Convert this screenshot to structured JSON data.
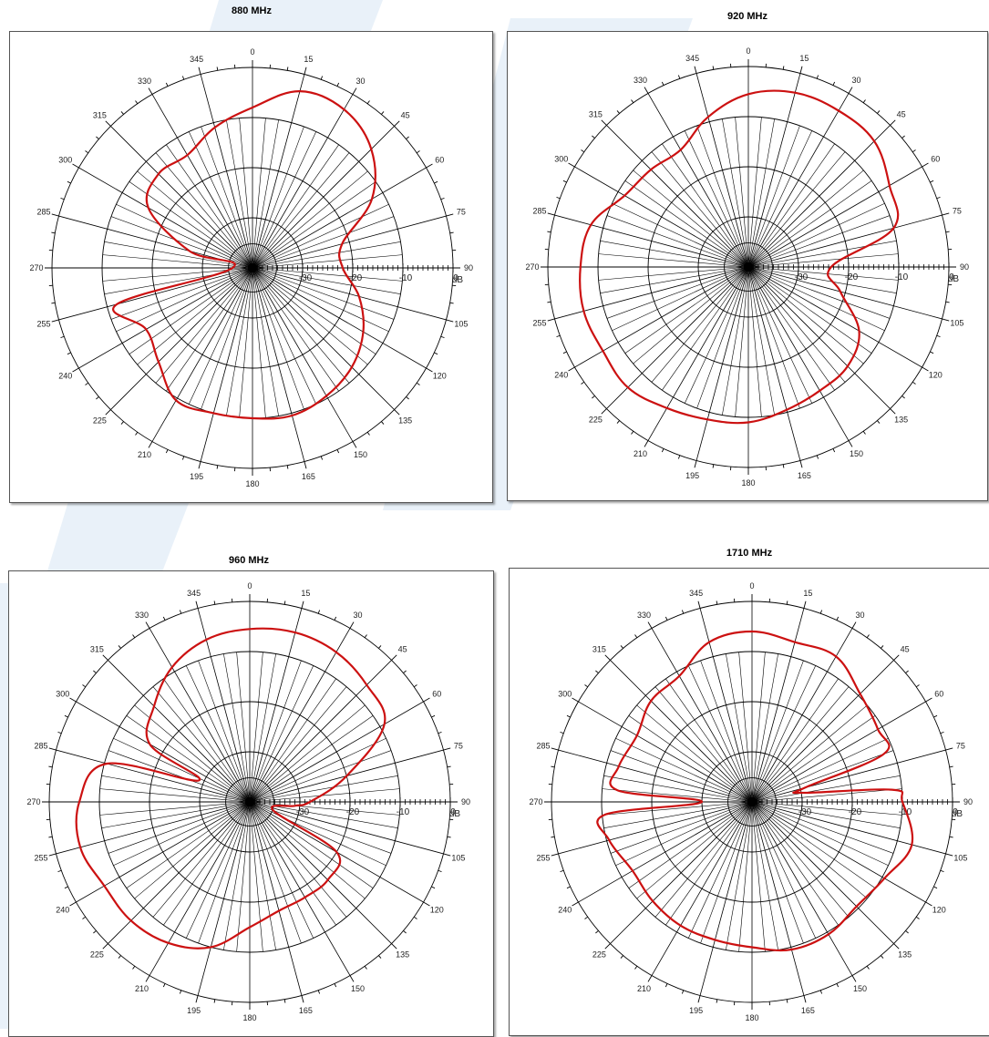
{
  "colors": {
    "pattern": "#cc1111",
    "grid": "#000000",
    "watermark": "#e3eef8"
  },
  "axis": {
    "angle_labels": [
      "0",
      "15",
      "30",
      "45",
      "60",
      "75",
      "90",
      "105",
      "120",
      "135",
      "150",
      "165",
      "180",
      "195",
      "210",
      "225",
      "240",
      "255",
      "270",
      "285",
      "300",
      "315",
      "330",
      "345"
    ],
    "db_labels": [
      "-30",
      "-20",
      "-10",
      "0"
    ],
    "db_unit": "dB"
  },
  "chart_data": [
    {
      "type": "polar-line",
      "title": "880 MHz",
      "r_range_db": [
        -40,
        0
      ],
      "rings_db": [
        -30,
        -20,
        -10,
        0
      ],
      "angle_step_deg": 15,
      "series": [
        {
          "angles_deg": [
            0,
            15,
            30,
            45,
            60,
            75,
            90,
            105,
            120,
            135,
            150,
            165,
            180,
            195,
            210,
            225,
            240,
            255,
            270,
            285,
            300,
            315,
            330,
            345
          ],
          "values_db": [
            -8,
            -3.5,
            -3.5,
            -6.5,
            -12.5,
            -21.5,
            -22,
            -18,
            -14.5,
            -12,
            -10.5,
            -9.5,
            -10,
            -10,
            -9.5,
            -13.5,
            -15.5,
            -12,
            -36,
            -27,
            -16,
            -13.5,
            -14,
            -11
          ]
        }
      ]
    },
    {
      "type": "polar-line",
      "title": "920 MHz",
      "r_range_db": [
        -40,
        0
      ],
      "rings_db": [
        -30,
        -20,
        -10,
        0
      ],
      "angle_step_deg": 15,
      "series": [
        {
          "angles_deg": [
            0,
            15,
            30,
            45,
            60,
            75,
            90,
            105,
            120,
            135,
            150,
            165,
            180,
            195,
            210,
            225,
            240,
            255,
            270,
            285,
            300,
            315,
            330,
            345
          ],
          "values_db": [
            -5.5,
            -4,
            -4,
            -4.5,
            -7.5,
            -10,
            -23.5,
            -21,
            -14.5,
            -12,
            -11.5,
            -10.5,
            -9,
            -8.5,
            -7.5,
            -6,
            -6.5,
            -6,
            -6.5,
            -7.5,
            -11.5,
            -12.5,
            -13,
            -9
          ]
        }
      ]
    },
    {
      "type": "polar-line",
      "title": "960 MHz",
      "r_range_db": [
        -40,
        0
      ],
      "rings_db": [
        -30,
        -20,
        -10,
        0
      ],
      "angle_step_deg": 15,
      "series": [
        {
          "angles_deg": [
            0,
            15,
            30,
            45,
            60,
            75,
            90,
            95,
            110,
            120,
            135,
            150,
            165,
            180,
            195,
            210,
            225,
            240,
            255,
            270,
            285,
            293,
            300,
            315,
            330,
            345
          ],
          "values_db": [
            -5.5,
            -5,
            -5.5,
            -7,
            -9,
            -20,
            -28,
            -31,
            -35,
            -20,
            -18,
            -18,
            -17.5,
            -15,
            -10,
            -7.5,
            -6.5,
            -6.5,
            -5,
            -6,
            -10.5,
            -29,
            -17,
            -13,
            -9,
            -6.5
          ]
        }
      ]
    },
    {
      "type": "polar-line",
      "title": "1710 MHz",
      "r_range_db": [
        -40,
        0
      ],
      "rings_db": [
        -30,
        -20,
        -10,
        0
      ],
      "angle_step_deg": 15,
      "series": [
        {
          "angles_deg": [
            0,
            15,
            30,
            45,
            60,
            70,
            75,
            80,
            85,
            90,
            105,
            120,
            135,
            150,
            165,
            180,
            195,
            210,
            225,
            240,
            255,
            265,
            270,
            275,
            285,
            300,
            315,
            330,
            345
          ],
          "values_db": [
            -6,
            -7,
            -6.5,
            -9.5,
            -11,
            -12,
            -29,
            -29.5,
            -12,
            -10,
            -7,
            -9.5,
            -10.5,
            -9.5,
            -9.5,
            -11,
            -11.5,
            -11.5,
            -12,
            -12.5,
            -10.5,
            -10.5,
            -30,
            -13,
            -12.5,
            -13.5,
            -11.5,
            -11,
            -7
          ]
        }
      ]
    }
  ]
}
